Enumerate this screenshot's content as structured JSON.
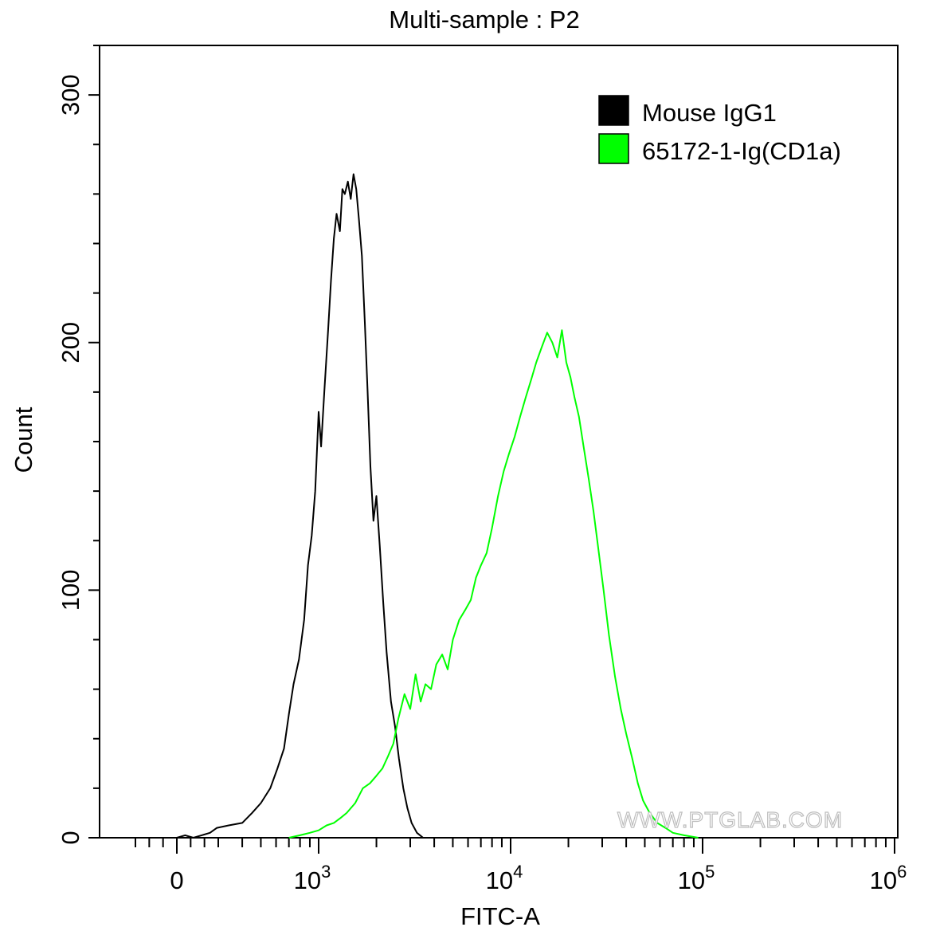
{
  "chart_data": {
    "type": "area",
    "title": "Multi-sample : P2",
    "xlabel": "FITC-A",
    "ylabel": "Count",
    "x_scale": "biexponential",
    "xlim": [
      -400,
      1000000
    ],
    "ylim": [
      0,
      320
    ],
    "grid": false,
    "legend_position": "top-right",
    "x_ticks": [
      {
        "value": 0,
        "base": "0",
        "exp": ""
      },
      {
        "value": 1000,
        "base": "10",
        "exp": "3"
      },
      {
        "value": 10000,
        "base": "10",
        "exp": "4"
      },
      {
        "value": 100000,
        "base": "10",
        "exp": "5"
      },
      {
        "value": 1000000,
        "base": "10",
        "exp": "6"
      }
    ],
    "y_ticks": [
      "0",
      "100",
      "200",
      "300"
    ],
    "series": [
      {
        "name": "Mouse IgG1",
        "color": "#000000",
        "points": [
          [
            0,
            0
          ],
          [
            60,
            1
          ],
          [
            120,
            0
          ],
          [
            180,
            1
          ],
          [
            240,
            2
          ],
          [
            290,
            4
          ],
          [
            340,
            5
          ],
          [
            400,
            6
          ],
          [
            450,
            10
          ],
          [
            500,
            14
          ],
          [
            560,
            20
          ],
          [
            610,
            28
          ],
          [
            660,
            36
          ],
          [
            700,
            50
          ],
          [
            740,
            62
          ],
          [
            790,
            72
          ],
          [
            840,
            88
          ],
          [
            880,
            110
          ],
          [
            920,
            122
          ],
          [
            960,
            140
          ],
          [
            1000,
            172
          ],
          [
            1030,
            158
          ],
          [
            1070,
            180
          ],
          [
            1120,
            205
          ],
          [
            1160,
            225
          ],
          [
            1200,
            242
          ],
          [
            1240,
            252
          ],
          [
            1290,
            245
          ],
          [
            1330,
            262
          ],
          [
            1370,
            260
          ],
          [
            1420,
            265
          ],
          [
            1470,
            258
          ],
          [
            1520,
            268
          ],
          [
            1570,
            262
          ],
          [
            1620,
            250
          ],
          [
            1680,
            235
          ],
          [
            1740,
            208
          ],
          [
            1800,
            180
          ],
          [
            1860,
            150
          ],
          [
            1930,
            128
          ],
          [
            2000,
            138
          ],
          [
            2080,
            118
          ],
          [
            2170,
            95
          ],
          [
            2260,
            75
          ],
          [
            2380,
            55
          ],
          [
            2500,
            45
          ],
          [
            2620,
            32
          ],
          [
            2760,
            20
          ],
          [
            2900,
            12
          ],
          [
            3050,
            6
          ],
          [
            3250,
            2
          ],
          [
            3500,
            0
          ]
        ]
      },
      {
        "name": "65172-1-Ig(CD1a)",
        "color": "#00ff00",
        "points": [
          [
            700,
            0
          ],
          [
            800,
            1
          ],
          [
            900,
            2
          ],
          [
            1000,
            3
          ],
          [
            1100,
            5
          ],
          [
            1200,
            6
          ],
          [
            1300,
            8
          ],
          [
            1400,
            10
          ],
          [
            1550,
            14
          ],
          [
            1700,
            20
          ],
          [
            1850,
            22
          ],
          [
            2000,
            25
          ],
          [
            2150,
            28
          ],
          [
            2300,
            33
          ],
          [
            2450,
            38
          ],
          [
            2600,
            48
          ],
          [
            2800,
            58
          ],
          [
            3000,
            52
          ],
          [
            3200,
            66
          ],
          [
            3400,
            55
          ],
          [
            3600,
            62
          ],
          [
            3850,
            60
          ],
          [
            4100,
            70
          ],
          [
            4400,
            74
          ],
          [
            4700,
            68
          ],
          [
            5000,
            80
          ],
          [
            5400,
            88
          ],
          [
            5800,
            92
          ],
          [
            6200,
            96
          ],
          [
            6600,
            105
          ],
          [
            7000,
            110
          ],
          [
            7500,
            115
          ],
          [
            8000,
            125
          ],
          [
            8600,
            138
          ],
          [
            9200,
            148
          ],
          [
            9800,
            155
          ],
          [
            10500,
            162
          ],
          [
            11200,
            170
          ],
          [
            12000,
            178
          ],
          [
            12800,
            185
          ],
          [
            13600,
            192
          ],
          [
            14500,
            198
          ],
          [
            15500,
            204
          ],
          [
            16500,
            200
          ],
          [
            17500,
            194
          ],
          [
            18500,
            205
          ],
          [
            19500,
            192
          ],
          [
            20500,
            186
          ],
          [
            21500,
            178
          ],
          [
            22700,
            170
          ],
          [
            24000,
            158
          ],
          [
            25500,
            145
          ],
          [
            27000,
            132
          ],
          [
            28500,
            118
          ],
          [
            30500,
            100
          ],
          [
            32500,
            82
          ],
          [
            35000,
            65
          ],
          [
            37500,
            52
          ],
          [
            40000,
            42
          ],
          [
            43000,
            32
          ],
          [
            46000,
            22
          ],
          [
            49000,
            15
          ],
          [
            53000,
            10
          ],
          [
            58000,
            6
          ],
          [
            64000,
            4
          ],
          [
            70000,
            2
          ],
          [
            80000,
            1
          ],
          [
            95000,
            0
          ]
        ]
      }
    ]
  },
  "watermark": "WWW.PTGLAB.COM"
}
